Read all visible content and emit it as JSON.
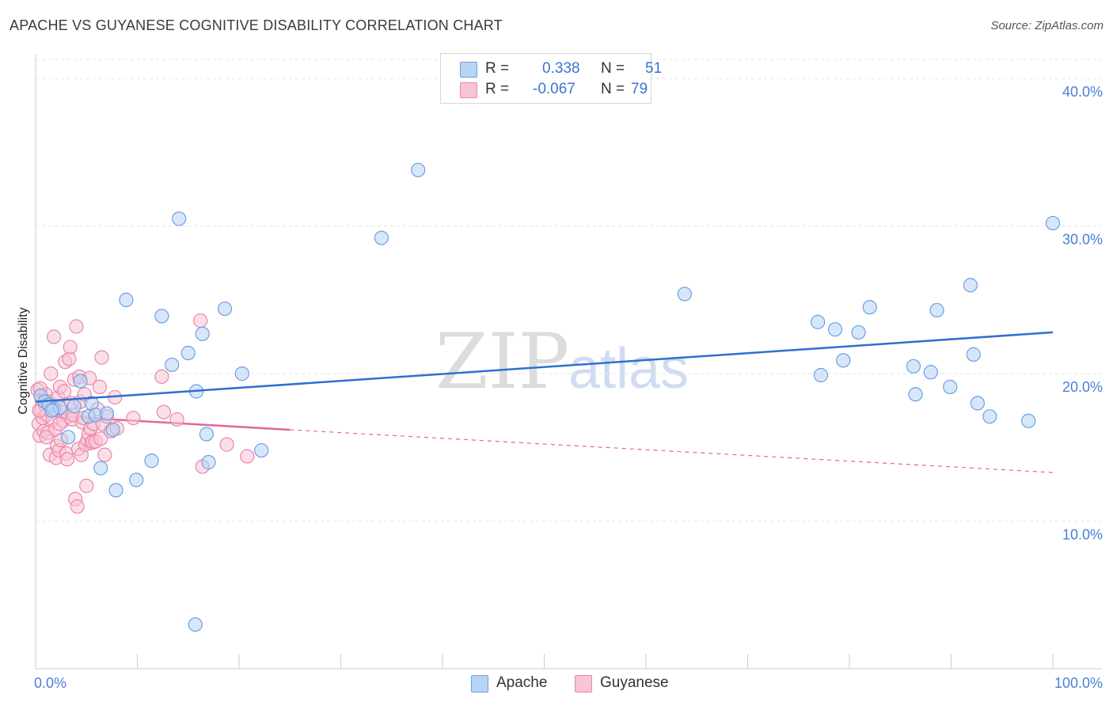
{
  "header": {
    "title": "APACHE VS GUYANESE COGNITIVE DISABILITY CORRELATION CHART",
    "source": "Source: ZipAtlas.com"
  },
  "legend": {
    "rows": [
      {
        "r_label": "R =",
        "r_value": "0.338",
        "n_label": "N =",
        "n_value": "51"
      },
      {
        "r_label": "R =",
        "r_value": "-0.067",
        "n_label": "N =",
        "n_value": "79"
      }
    ]
  },
  "watermark": {
    "part1": "ZIP",
    "part2": "atlas"
  },
  "colors": {
    "apache_fill": "#b7d3f5",
    "apache_stroke": "#6d9fe0",
    "apache_line": "#2f6fd0",
    "guyanese_fill": "#f8c4d6",
    "guyanese_stroke": "#ea86a9",
    "guyanese_line": "#e0679a",
    "tick_text": "#4a7fd6",
    "grid": "#e3e3e3"
  },
  "chart_data": {
    "type": "scatter",
    "title": "APACHE VS GUYANESE COGNITIVE DISABILITY CORRELATION CHART",
    "xlabel": "",
    "ylabel": "Cognitive Disability",
    "xlim": [
      0,
      100
    ],
    "ylim": [
      0,
      41.3
    ],
    "x_tick_labels": [
      "0.0%",
      "100.0%"
    ],
    "y_ticks": [
      10,
      20,
      30,
      40
    ],
    "y_tick_labels": [
      "10.0%",
      "20.0%",
      "30.0%",
      "40.0%"
    ],
    "grid": true,
    "legend_placement": "top-center",
    "series": [
      {
        "name": "Apache",
        "r": 0.338,
        "n": 51,
        "trend": {
          "x": [
            0,
            100
          ],
          "y": [
            18.1,
            22.8
          ],
          "style": "solid"
        },
        "points": [
          [
            0.5,
            18.5
          ],
          [
            0.9,
            18.1
          ],
          [
            1.3,
            17.9
          ],
          [
            1.8,
            17.6
          ],
          [
            2.4,
            17.7
          ],
          [
            3.2,
            15.7
          ],
          [
            3.8,
            17.8
          ],
          [
            4.4,
            19.5
          ],
          [
            5.2,
            17.1
          ],
          [
            5.5,
            18.0
          ],
          [
            5.9,
            17.2
          ],
          [
            6.4,
            13.6
          ],
          [
            7.0,
            17.3
          ],
          [
            7.6,
            16.2
          ],
          [
            7.9,
            12.1
          ],
          [
            8.9,
            25.0
          ],
          [
            9.9,
            12.8
          ],
          [
            11.4,
            14.1
          ],
          [
            12.4,
            23.9
          ],
          [
            13.4,
            20.6
          ],
          [
            14.1,
            30.5
          ],
          [
            15.0,
            21.4
          ],
          [
            15.8,
            18.8
          ],
          [
            16.4,
            22.7
          ],
          [
            16.8,
            15.9
          ],
          [
            17.0,
            14.0
          ],
          [
            18.6,
            24.4
          ],
          [
            20.3,
            20.0
          ],
          [
            22.2,
            14.8
          ],
          [
            15.7,
            3.0
          ],
          [
            34.0,
            29.2
          ],
          [
            37.6,
            33.8
          ],
          [
            63.8,
            25.4
          ],
          [
            76.9,
            23.5
          ],
          [
            77.2,
            19.9
          ],
          [
            78.6,
            23.0
          ],
          [
            79.4,
            20.9
          ],
          [
            80.9,
            22.8
          ],
          [
            82.0,
            24.5
          ],
          [
            86.3,
            20.5
          ],
          [
            86.5,
            18.6
          ],
          [
            88.0,
            20.1
          ],
          [
            88.6,
            24.3
          ],
          [
            89.9,
            19.1
          ],
          [
            91.9,
            26.0
          ],
          [
            92.2,
            21.3
          ],
          [
            92.6,
            18.0
          ],
          [
            93.8,
            17.1
          ],
          [
            97.6,
            16.8
          ],
          [
            100.0,
            30.2
          ],
          [
            1.6,
            17.5
          ]
        ]
      },
      {
        "name": "Guyanese",
        "r": -0.067,
        "n": 79,
        "trend": {
          "x": [
            0,
            25
          ],
          "y": [
            17.2,
            16.2
          ],
          "style": "solid",
          "extension": {
            "x": [
              25,
              100
            ],
            "y": [
              16.2,
              13.3
            ],
            "style": "dashed"
          }
        },
        "points": [
          [
            0.2,
            18.9
          ],
          [
            0.3,
            16.6
          ],
          [
            0.4,
            15.8
          ],
          [
            0.5,
            17.5
          ],
          [
            0.6,
            18.2
          ],
          [
            0.7,
            17.0
          ],
          [
            0.8,
            16.1
          ],
          [
            0.9,
            17.9
          ],
          [
            1.0,
            18.6
          ],
          [
            1.1,
            17.2
          ],
          [
            1.2,
            16.0
          ],
          [
            1.3,
            18.1
          ],
          [
            1.4,
            14.5
          ],
          [
            1.5,
            20.0
          ],
          [
            1.6,
            17.8
          ],
          [
            1.7,
            16.9
          ],
          [
            1.8,
            22.5
          ],
          [
            1.9,
            16.2
          ],
          [
            2.0,
            14.3
          ],
          [
            2.1,
            15.1
          ],
          [
            2.2,
            18.4
          ],
          [
            2.3,
            14.8
          ],
          [
            2.4,
            19.1
          ],
          [
            2.5,
            15.5
          ],
          [
            2.6,
            17.4
          ],
          [
            2.7,
            16.8
          ],
          [
            2.8,
            18.8
          ],
          [
            2.9,
            20.8
          ],
          [
            3.0,
            14.6
          ],
          [
            3.1,
            14.2
          ],
          [
            3.2,
            17.1
          ],
          [
            3.3,
            21.0
          ],
          [
            3.4,
            21.8
          ],
          [
            3.5,
            18.0
          ],
          [
            3.6,
            16.9
          ],
          [
            3.7,
            17.2
          ],
          [
            3.8,
            19.6
          ],
          [
            3.9,
            11.5
          ],
          [
            4.0,
            23.2
          ],
          [
            4.1,
            11.0
          ],
          [
            4.2,
            14.9
          ],
          [
            4.3,
            19.8
          ],
          [
            4.4,
            18.1
          ],
          [
            4.5,
            14.5
          ],
          [
            4.6,
            16.7
          ],
          [
            4.7,
            17.0
          ],
          [
            4.8,
            18.6
          ],
          [
            4.9,
            15.2
          ],
          [
            5.0,
            12.4
          ],
          [
            5.1,
            15.5
          ],
          [
            5.2,
            15.9
          ],
          [
            5.3,
            19.7
          ],
          [
            5.4,
            16.3
          ],
          [
            5.5,
            15.3
          ],
          [
            5.6,
            15.4
          ],
          [
            5.7,
            16.6
          ],
          [
            5.9,
            15.4
          ],
          [
            6.1,
            17.6
          ],
          [
            6.3,
            19.1
          ],
          [
            6.4,
            15.6
          ],
          [
            6.5,
            21.1
          ],
          [
            6.6,
            16.6
          ],
          [
            6.8,
            14.5
          ],
          [
            7.0,
            17.1
          ],
          [
            7.4,
            16.1
          ],
          [
            7.8,
            18.4
          ],
          [
            8.0,
            16.3
          ],
          [
            9.6,
            17.0
          ],
          [
            12.4,
            19.8
          ],
          [
            12.6,
            17.4
          ],
          [
            13.9,
            16.9
          ],
          [
            16.2,
            23.6
          ],
          [
            16.4,
            13.7
          ],
          [
            18.8,
            15.2
          ],
          [
            20.8,
            14.4
          ],
          [
            0.35,
            17.5
          ],
          [
            0.45,
            19.0
          ],
          [
            1.05,
            15.7
          ],
          [
            2.35,
            16.6
          ]
        ]
      }
    ]
  }
}
